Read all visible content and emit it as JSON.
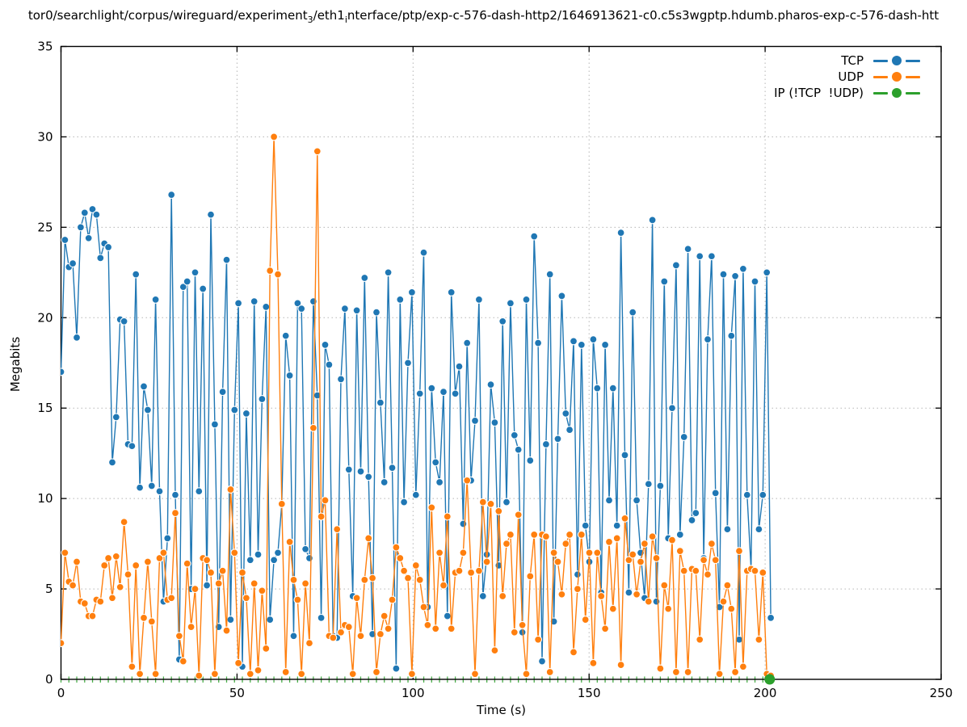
{
  "title": {
    "part1": "tor0/searchlight/corpus/wireguard/experiment",
    "sub1": "3",
    "part2": "/eth1",
    "sub2": "i",
    "part3": "nterface/ptp/exp-c-576-dash-http2/1646913621-c0.c5s3wgptp.hdumb.pharos-exp-c-576-dash-htt"
  },
  "axes": {
    "ylabel": "Megabits",
    "xlabel": "Time (s)",
    "xticks": [
      0,
      50,
      100,
      150,
      200,
      250
    ],
    "yticks": [
      0,
      5,
      10,
      15,
      20,
      25,
      30,
      35
    ],
    "xlim": [
      0,
      250
    ],
    "ylim": [
      0,
      35
    ],
    "grid": "dotted"
  },
  "legend": {
    "items": [
      {
        "label": "TCP",
        "color": "#1f77b4"
      },
      {
        "label": "UDP",
        "color": "#ff7f0e"
      },
      {
        "label": "IP (!TCP  !UDP)",
        "color": "#2ca02c"
      }
    ]
  },
  "chart_data": {
    "type": "line",
    "title": "tor0/searchlight/corpus/wireguard/experiment_3/eth1_interface/ptp/exp-c-576-dash-http2/1646913621-c0.c5s3wgptp.hdumb.pharos-exp-c-576-dash-htt",
    "xlabel": "Time (s)",
    "ylabel": "Megabits",
    "xlim": [
      0,
      250
    ],
    "ylim": [
      0,
      35
    ],
    "marker": "filled-circle",
    "x_start": 0,
    "x_step": 1.12,
    "series": [
      {
        "name": "TCP",
        "color": "#1f77b4",
        "values": [
          17.0,
          24.3,
          22.8,
          23.0,
          18.9,
          25.0,
          25.8,
          24.4,
          26.0,
          25.7,
          23.3,
          24.1,
          23.9,
          12.0,
          14.5,
          19.9,
          19.8,
          13.0,
          12.9,
          22.4,
          10.6,
          16.2,
          14.9,
          10.7,
          21.0,
          10.4,
          4.3,
          7.8,
          26.8,
          10.2,
          1.1,
          21.7,
          22.0,
          5.0,
          22.5,
          10.4,
          21.6,
          5.2,
          25.7,
          14.1,
          2.9,
          15.9,
          23.2,
          3.3,
          14.9,
          20.8,
          0.7,
          14.7,
          6.6,
          20.9,
          6.9,
          15.5,
          20.6,
          3.3,
          6.6,
          7.0,
          9.7,
          19.0,
          16.8,
          2.4,
          20.8,
          20.5,
          7.2,
          6.7,
          20.9,
          15.7,
          3.4,
          18.5,
          17.4,
          2.4,
          2.3,
          16.6,
          20.5,
          11.6,
          4.6,
          20.4,
          11.5,
          22.2,
          11.2,
          2.5,
          20.3,
          15.3,
          10.9,
          22.5,
          11.7,
          0.6,
          21.0,
          9.8,
          17.5,
          21.4,
          10.2,
          15.8,
          23.6,
          4.0,
          16.1,
          12.0,
          10.9,
          15.9,
          3.5,
          21.4,
          15.8,
          17.3,
          8.6,
          18.6,
          11.0,
          14.3,
          21.0,
          4.6,
          6.9,
          16.3,
          14.2,
          6.3,
          19.8,
          9.8,
          20.8,
          13.5,
          12.7,
          2.6,
          21.0,
          12.1,
          24.5,
          18.6,
          1.0,
          13.0,
          22.4,
          3.2,
          13.3,
          21.2,
          14.7,
          13.8,
          18.7,
          5.8,
          18.5,
          8.5,
          6.5,
          18.8,
          16.1,
          4.8,
          18.5,
          9.9,
          16.1,
          8.5,
          24.7,
          12.4,
          4.8,
          20.3,
          9.9,
          7.0,
          4.5,
          10.8,
          25.4,
          4.3,
          10.7,
          22.0,
          7.8,
          15.0,
          22.9,
          8.0,
          13.4,
          23.8,
          8.8,
          9.2,
          23.4,
          6.7,
          18.8,
          23.4,
          10.3,
          4.0,
          22.4,
          8.3,
          19.0,
          22.3,
          2.2,
          22.7,
          10.2,
          6.1,
          22.0,
          8.3,
          10.2,
          22.5,
          3.4
        ]
      },
      {
        "name": "UDP",
        "color": "#ff7f0e",
        "values": [
          2.0,
          7.0,
          5.4,
          5.2,
          6.5,
          4.3,
          4.2,
          3.5,
          3.5,
          4.4,
          4.3,
          6.3,
          6.7,
          4.5,
          6.8,
          5.1,
          8.7,
          5.8,
          0.7,
          6.3,
          0.3,
          3.4,
          6.5,
          3.2,
          0.3,
          6.7,
          7.0,
          4.4,
          4.5,
          9.2,
          2.4,
          1.0,
          6.4,
          2.9,
          5.0,
          0.2,
          6.7,
          6.6,
          5.9,
          0.3,
          5.3,
          6.0,
          2.7,
          10.5,
          7.0,
          0.9,
          5.9,
          4.5,
          0.3,
          5.3,
          0.5,
          4.9,
          1.7,
          22.6,
          30.0,
          22.4,
          9.7,
          0.4,
          7.6,
          5.5,
          4.4,
          0.3,
          5.3,
          2.0,
          13.9,
          29.2,
          9.0,
          9.9,
          2.4,
          2.3,
          8.3,
          2.6,
          3.0,
          2.9,
          0.3,
          4.5,
          2.4,
          5.5,
          7.8,
          5.6,
          0.4,
          2.5,
          3.5,
          2.8,
          4.4,
          7.3,
          6.7,
          6.0,
          5.6,
          0.3,
          6.3,
          5.5,
          4.0,
          3.0,
          9.5,
          2.8,
          7.0,
          5.2,
          9.0,
          2.8,
          5.9,
          6.0,
          7.0,
          11.0,
          5.9,
          0.3,
          6.0,
          9.8,
          6.5,
          9.7,
          1.6,
          9.3,
          4.6,
          7.5,
          8.0,
          2.6,
          9.1,
          3.0,
          0.3,
          5.7,
          8.0,
          2.2,
          8.0,
          7.9,
          0.4,
          7.0,
          6.5,
          4.7,
          7.5,
          8.0,
          1.5,
          5.0,
          8.0,
          3.3,
          7.0,
          0.9,
          7.0,
          4.6,
          2.8,
          7.6,
          3.9,
          7.8,
          0.8,
          8.9,
          6.6,
          6.9,
          4.7,
          6.5,
          7.5,
          4.3,
          7.9,
          6.7,
          0.6,
          5.2,
          3.9,
          7.7,
          0.4,
          7.1,
          6.0,
          0.4,
          6.1,
          6.0,
          2.2,
          6.6,
          5.8,
          7.5,
          6.6,
          0.3,
          4.3,
          5.2,
          3.9,
          0.4,
          7.1,
          0.7,
          6.0,
          6.1,
          6.0,
          2.2,
          5.9,
          0.3,
          0.2
        ]
      },
      {
        "name": "IP (!TCP !UDP)",
        "color": "#2ca02c",
        "constant_value": 0,
        "tick_step": 2.24,
        "t_end": 199.4,
        "last_point_t": 201.3
      }
    ]
  }
}
